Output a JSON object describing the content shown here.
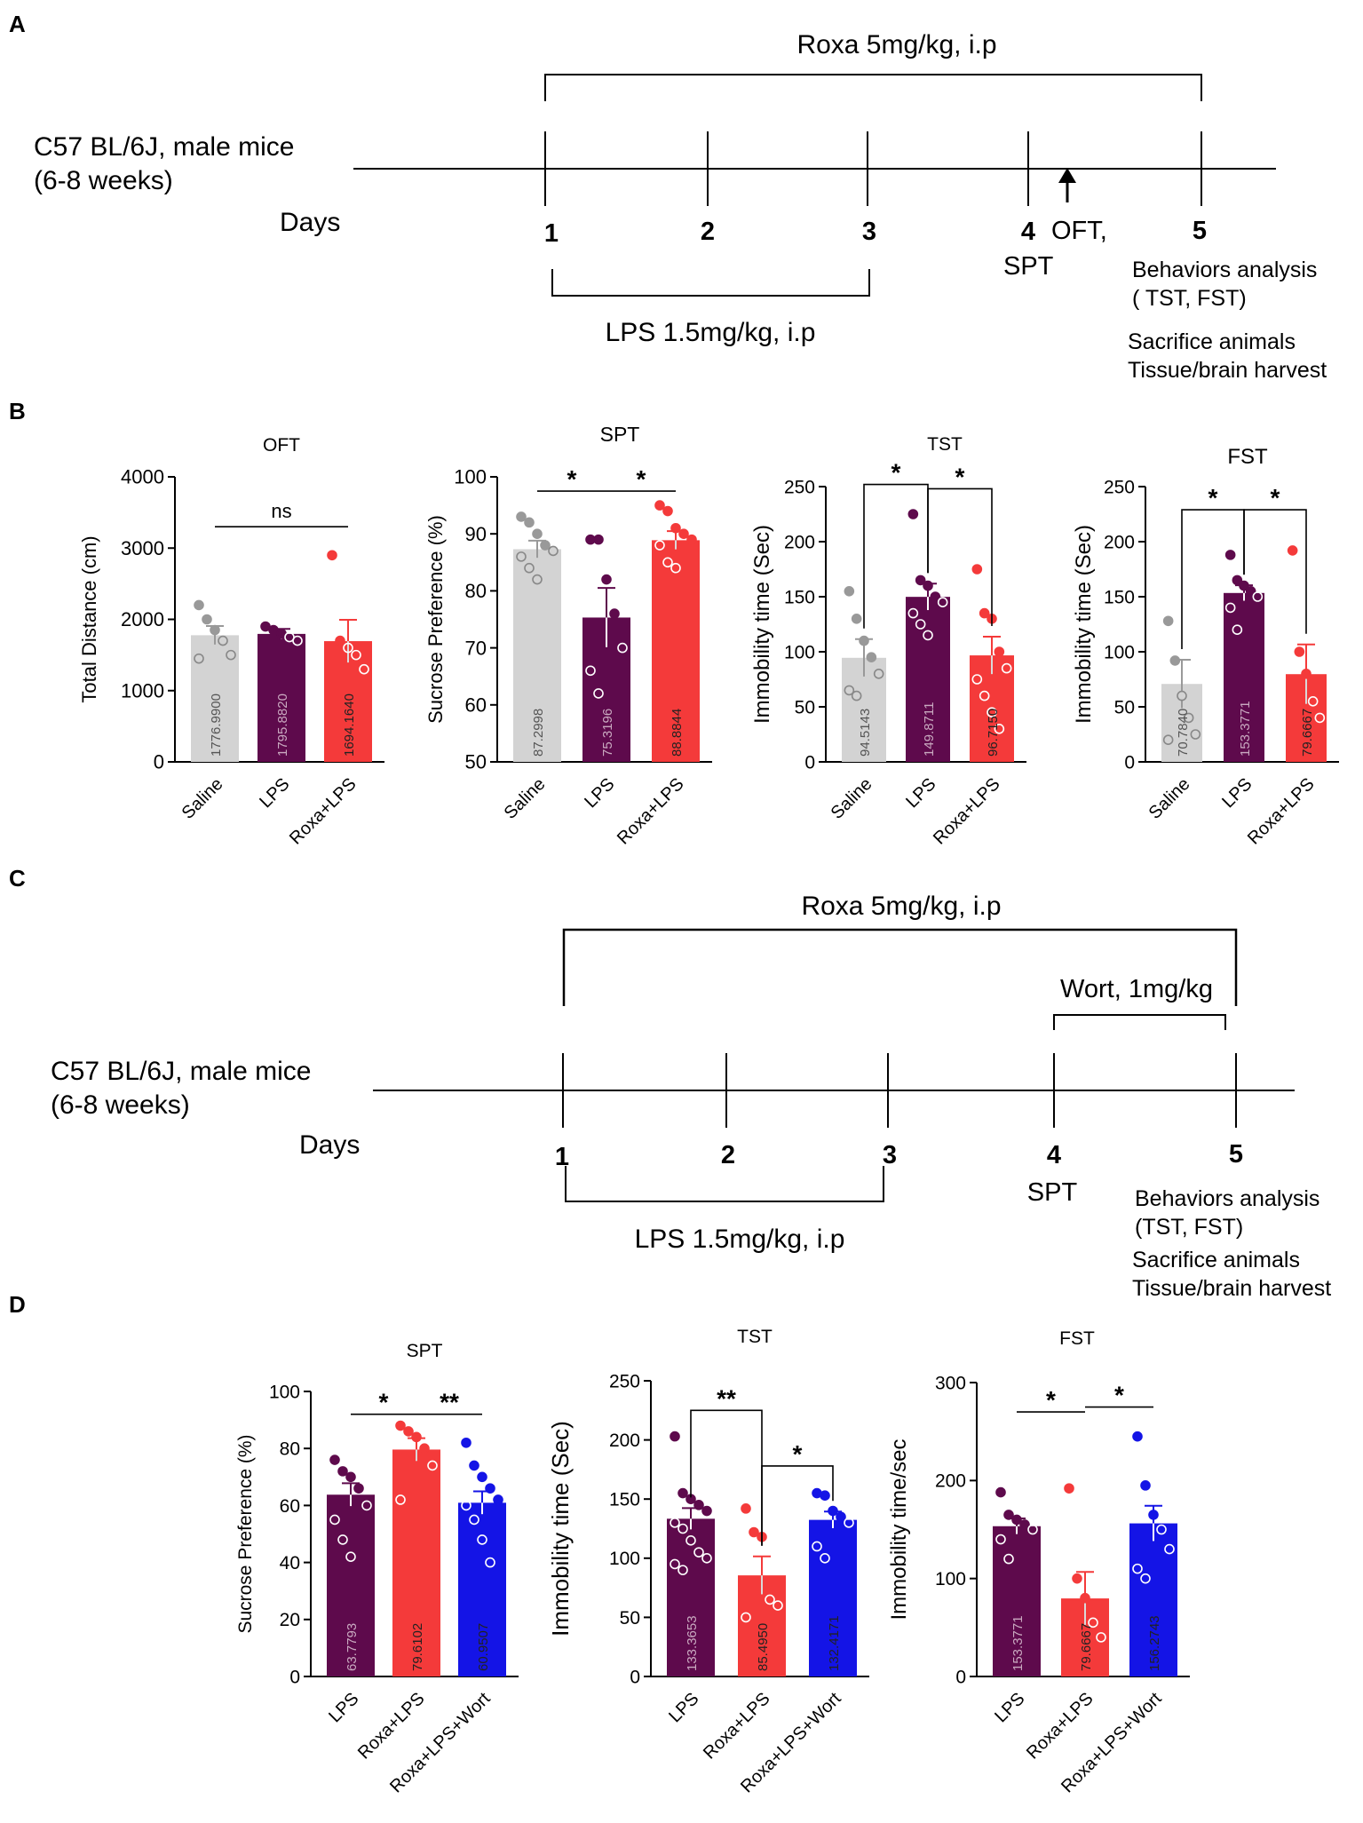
{
  "panel_labels": {
    "a": "A",
    "b": "B",
    "c": "C",
    "d": "D"
  },
  "timeline_a": {
    "roxa": "Roxa 5mg/kg, i.p",
    "mouse_line1": "C57 BL/6J, male mice",
    "mouse_line2": "(6-8 weeks)",
    "days_label": "Days",
    "days": [
      "1",
      "2",
      "3",
      "4",
      "5"
    ],
    "oft": "OFT,",
    "spt": "SPT",
    "lps": "LPS 1.5mg/kg, i.p",
    "behaviors": "Behaviors analysis",
    "behaviors_sub": "( TST, FST)",
    "sacrifice": "Sacrifice animals",
    "tissue": "Tissue/brain harvest"
  },
  "timeline_c": {
    "roxa": "Roxa 5mg/kg, i.p",
    "wort": "Wort, 1mg/kg",
    "mouse_line1": "C57 BL/6J, male mice",
    "mouse_line2": "(6-8 weeks)",
    "days_label": "Days",
    "days": [
      "1",
      "2",
      "3",
      "4",
      "5"
    ],
    "spt": "SPT",
    "lps": "LPS 1.5mg/kg, i.p",
    "behaviors": "Behaviors analysis",
    "behaviors_sub": "(TST, FST)",
    "sacrifice": "Sacrifice animals",
    "tissue": "Tissue/brain harvest"
  },
  "colors": {
    "saline": "#d3d3d3",
    "lps": "#5e0a4c",
    "roxa": "#f43a3a",
    "wort": "#1414e6"
  },
  "chart_data": [
    {
      "id": "oft",
      "panel": "B",
      "type": "bar",
      "title": "OFT",
      "ylabel": "Total Distance (cm)",
      "ylim": [
        0,
        4000
      ],
      "yticks": [
        "0",
        "1000",
        "2000",
        "3000",
        "4000"
      ],
      "categories": [
        "Saline",
        "LPS",
        "Roxa+LPS"
      ],
      "values": [
        1776.99,
        1795.882,
        1694.164
      ],
      "bar_labels": [
        "1776.9900",
        "1795.8820",
        "1694.1640"
      ],
      "errors": [
        130,
        70,
        300
      ],
      "colors": [
        "#d3d3d3",
        "#5e0a4c",
        "#f43a3a"
      ],
      "points": [
        [
          2200,
          2000,
          1850,
          1700,
          1500,
          1450
        ],
        [
          1900,
          1850,
          1800,
          1750,
          1700
        ],
        [
          2900,
          1700,
          1600,
          1500,
          1300
        ]
      ],
      "sig": [
        {
          "a": 0,
          "b": 2,
          "label": "ns",
          "y": 3300,
          "style": "line"
        }
      ]
    },
    {
      "id": "spt_b",
      "panel": "B",
      "type": "bar",
      "title": "SPT",
      "ylabel": "Sucrose Preference (%)",
      "ylim": [
        50,
        100
      ],
      "yticks": [
        "50",
        "60",
        "70",
        "80",
        "90",
        "100"
      ],
      "categories": [
        "Saline",
        "LPS",
        "Roxa+LPS"
      ],
      "values": [
        87.2998,
        75.3196,
        88.8844
      ],
      "bar_labels": [
        "87.2998",
        "75.3196",
        "88.8844"
      ],
      "errors": [
        1.5,
        5.2,
        1.6
      ],
      "colors": [
        "#d3d3d3",
        "#5e0a4c",
        "#f43a3a"
      ],
      "points": [
        [
          93,
          92,
          90,
          88,
          87,
          86,
          84,
          82
        ],
        [
          89,
          89,
          82,
          76,
          70,
          66,
          62
        ],
        [
          95,
          94,
          91,
          90,
          89,
          88,
          85,
          84
        ]
      ],
      "sig": [
        {
          "a": 0,
          "b": 1,
          "label": "*",
          "y": 97.5,
          "style": "line"
        },
        {
          "a": 1,
          "b": 2,
          "label": "*",
          "y": 97.5,
          "style": "line"
        }
      ]
    },
    {
      "id": "tst_b",
      "panel": "B",
      "type": "bar",
      "title": "TST",
      "ylabel": "Immobility time (Sec)",
      "ylim": [
        0,
        250
      ],
      "yticks": [
        "0",
        "50",
        "100",
        "150",
        "200",
        "250"
      ],
      "categories": [
        "Saline",
        "LPS",
        "Roxa+LPS"
      ],
      "values": [
        94.5143,
        149.8711,
        96.715
      ],
      "bar_labels": [
        "94.5143",
        "149.8711",
        "96.7150"
      ],
      "errors": [
        17,
        12,
        17
      ],
      "colors": [
        "#d3d3d3",
        "#5e0a4c",
        "#f43a3a"
      ],
      "points": [
        [
          155,
          130,
          110,
          95,
          80,
          65,
          60
        ],
        [
          225,
          165,
          160,
          150,
          145,
          135,
          125,
          115
        ],
        [
          175,
          135,
          130,
          100,
          85,
          75,
          60,
          45,
          30
        ]
      ],
      "sig": [
        {
          "a": 0,
          "b": 1,
          "label": "*",
          "y": 252,
          "style": "bracket"
        },
        {
          "a": 1,
          "b": 2,
          "label": "*",
          "y": 248,
          "style": "bracket"
        }
      ]
    },
    {
      "id": "fst_b",
      "panel": "B",
      "type": "bar",
      "title": "FST",
      "ylabel": "Immobility time  (Sec)",
      "ylim": [
        0,
        250
      ],
      "yticks": [
        "0",
        "50",
        "100",
        "150",
        "200",
        "250"
      ],
      "categories": [
        "Saline",
        "LPS",
        "Roxa+LPS"
      ],
      "values": [
        70.784,
        153.3771,
        79.6667
      ],
      "bar_labels": [
        "70.7840",
        "153.3771",
        "79.6667"
      ],
      "errors": [
        22,
        7,
        27
      ],
      "colors": [
        "#d3d3d3",
        "#5e0a4c",
        "#f43a3a"
      ],
      "points": [
        [
          128,
          92,
          60,
          40,
          25,
          20
        ],
        [
          188,
          165,
          160,
          155,
          150,
          140,
          120
        ],
        [
          192,
          100,
          80,
          55,
          40
        ]
      ],
      "sig": [
        {
          "a": 0,
          "b": 1,
          "label": "*",
          "y": 229,
          "style": "bracket"
        },
        {
          "a": 1,
          "b": 2,
          "label": "*",
          "y": 229,
          "style": "bracket"
        }
      ]
    },
    {
      "id": "spt_d",
      "panel": "D",
      "type": "bar",
      "title": "SPT",
      "ylabel": "Sucrose Preference (%)",
      "ylim": [
        0,
        100
      ],
      "yticks": [
        "0",
        "20",
        "40",
        "60",
        "80",
        "100"
      ],
      "categories": [
        "LPS",
        "Roxa+LPS",
        "Roxa+LPS+Wort"
      ],
      "values": [
        63.7793,
        79.6102,
        60.9507
      ],
      "bar_labels": [
        "63.7793",
        "79.6102",
        "60.9507"
      ],
      "errors": [
        4,
        4,
        4
      ],
      "colors": [
        "#5e0a4c",
        "#f43a3a",
        "#1414e6"
      ],
      "points": [
        [
          76,
          72,
          70,
          66,
          60,
          55,
          48,
          42
        ],
        [
          88,
          86,
          84,
          80,
          74,
          62
        ],
        [
          82,
          74,
          70,
          66,
          62,
          60,
          55,
          48,
          40
        ]
      ],
      "sig": [
        {
          "a": 0,
          "b": 1,
          "label": "*",
          "y": 92,
          "style": "line"
        },
        {
          "a": 1,
          "b": 2,
          "label": "**",
          "y": 92,
          "style": "line"
        }
      ]
    },
    {
      "id": "tst_d",
      "panel": "D",
      "type": "bar",
      "title": "TST",
      "ylabel": "Immobility time  (Sec)",
      "ylim": [
        0,
        250
      ],
      "yticks": [
        "0",
        "50",
        "100",
        "150",
        "200",
        "250"
      ],
      "categories": [
        "LPS",
        "Roxa+LPS",
        "Roxa+LPS+Wort"
      ],
      "values": [
        133.3653,
        85.495,
        132.4171
      ],
      "bar_labels": [
        "133.3653",
        "85.4950",
        "132.4171"
      ],
      "errors": [
        9,
        16,
        7
      ],
      "colors": [
        "#5e0a4c",
        "#f43a3a",
        "#1414e6"
      ],
      "points": [
        [
          203,
          155,
          150,
          145,
          140,
          130,
          125,
          115,
          105,
          100,
          95,
          90
        ],
        [
          142,
          122,
          118,
          65,
          60,
          50
        ],
        [
          155,
          153,
          140,
          135,
          130,
          110,
          100
        ]
      ],
      "sig": [
        {
          "a": 0,
          "b": 1,
          "label": "**",
          "y": 225,
          "style": "bracket"
        },
        {
          "a": 1,
          "b": 2,
          "label": "*",
          "y": 178,
          "style": "bracket"
        }
      ]
    },
    {
      "id": "fst_d",
      "panel": "D",
      "type": "bar",
      "title": "FST",
      "ylabel": "Immobility time/sec",
      "ylim": [
        0,
        300
      ],
      "yticks": [
        "0",
        "100",
        "200",
        "300"
      ],
      "categories": [
        "LPS",
        "Roxa+LPS",
        "Roxa+LPS+Wort"
      ],
      "values": [
        153.3771,
        79.6667,
        156.2743
      ],
      "bar_labels": [
        "153.3771",
        "79.6667",
        "156.2743"
      ],
      "errors": [
        8,
        27,
        18
      ],
      "colors": [
        "#5e0a4c",
        "#f43a3a",
        "#1414e6"
      ],
      "points": [
        [
          188,
          165,
          160,
          155,
          150,
          140,
          120
        ],
        [
          192,
          100,
          80,
          55,
          40
        ],
        [
          245,
          195,
          165,
          150,
          130,
          110,
          100
        ]
      ],
      "sig": [
        {
          "a": 0,
          "b": 1,
          "label": "*",
          "y": 270,
          "style": "line"
        },
        {
          "a": 1,
          "b": 2,
          "label": "*",
          "y": 275,
          "style": "line"
        }
      ]
    }
  ]
}
